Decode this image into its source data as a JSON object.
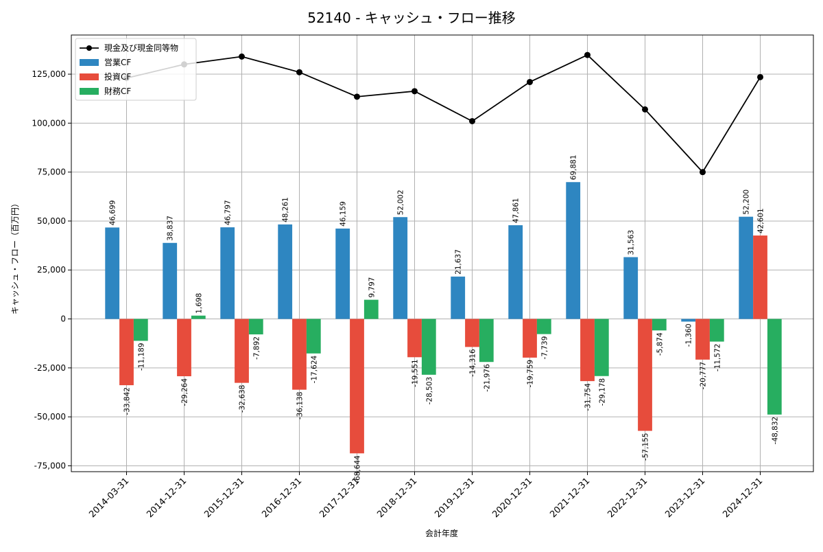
{
  "chart_data": {
    "type": "bar",
    "title": "52140 - キャッシュ・フロー推移",
    "xlabel": "会計年度",
    "ylabel": "キャッシュ・フロー（百万円）",
    "categories": [
      "2014-03-31",
      "2014-12-31",
      "2015-12-31",
      "2016-12-31",
      "2017-12-31",
      "2018-12-31",
      "2019-12-31",
      "2020-12-31",
      "2021-12-31",
      "2022-12-31",
      "2023-12-31",
      "2024-12-31"
    ],
    "series": [
      {
        "name": "営業CF",
        "kind": "bar",
        "color": "#2e86c1",
        "values": [
          46699,
          38837,
          46797,
          48261,
          46159,
          52002,
          21637,
          47861,
          69881,
          31563,
          -1360,
          52200
        ]
      },
      {
        "name": "投資CF",
        "kind": "bar",
        "color": "#e74c3c",
        "values": [
          -33842,
          -29264,
          -32638,
          -36138,
          -68644,
          -19551,
          -14316,
          -19759,
          -31754,
          -57155,
          -20777,
          42601
        ]
      },
      {
        "name": "財務CF",
        "kind": "bar",
        "color": "#27ae60",
        "values": [
          -11189,
          1698,
          -7892,
          -17624,
          9797,
          -28503,
          -21976,
          -7739,
          -29178,
          -5874,
          -11572,
          -48832
        ]
      },
      {
        "name": "現金及び現金同等物",
        "kind": "line",
        "color": "#000000",
        "values": [
          123000,
          130000,
          134000,
          126000,
          113500,
          116300,
          101000,
          121000,
          134800,
          107000,
          75000,
          123500
        ]
      }
    ],
    "ylim": [
      -78000,
      145000
    ],
    "yticks": [
      -75000,
      -50000,
      -25000,
      0,
      25000,
      50000,
      75000,
      100000,
      125000
    ],
    "grid": true,
    "legend_position": "top-left"
  }
}
